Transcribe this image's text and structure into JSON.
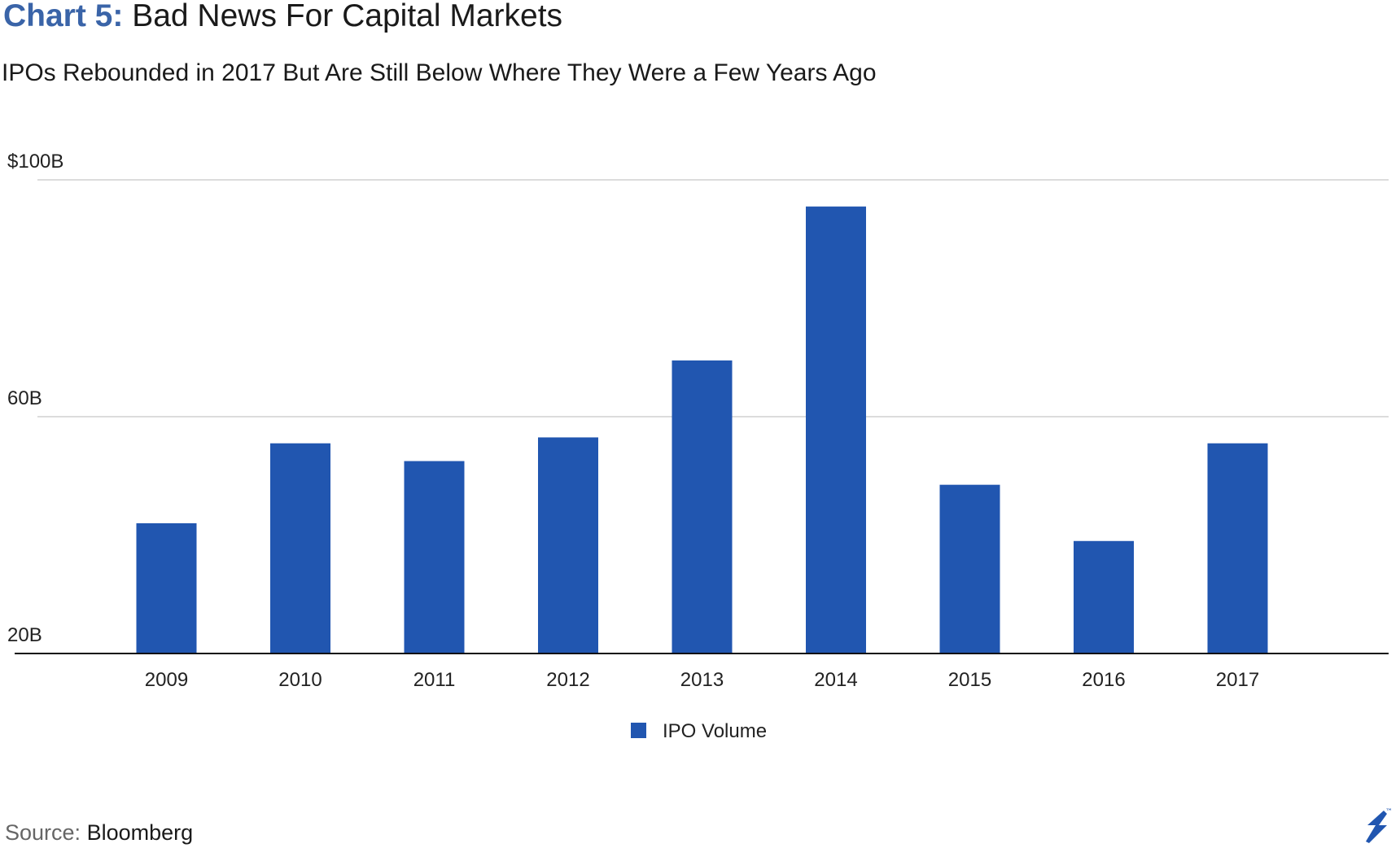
{
  "header": {
    "title_prefix": "Chart 5:",
    "title": "Bad News For Capital Markets",
    "subtitle": "IPOs Rebounded in 2017 But Are Still Below Where They Were a Few Years Ago"
  },
  "footer": {
    "source_label": "Source:",
    "source_value": "Bloomberg"
  },
  "colors": {
    "bar": "#2156b0",
    "title_accent": "#3a64a8",
    "grid": "#d0d0d0",
    "axis": "#111111"
  },
  "chart_data": {
    "type": "bar",
    "title": "Bad News For Capital Markets",
    "subtitle": "IPOs Rebounded in 2017 But Are Still Below Where They Were a Few Years Ago",
    "categories": [
      "2009",
      "2010",
      "2011",
      "2012",
      "2013",
      "2014",
      "2015",
      "2016",
      "2017"
    ],
    "series": [
      {
        "name": "IPO Volume",
        "values": [
          42,
          55.5,
          52.5,
          56.5,
          69.5,
          95.5,
          48.5,
          39,
          55.5
        ]
      }
    ],
    "xlabel": "",
    "ylabel": "",
    "ylim": [
      20,
      100
    ],
    "yticks": [
      {
        "value": 100,
        "label": "$100B"
      },
      {
        "value": 60,
        "label": "60B"
      },
      {
        "value": 20,
        "label": "20B"
      }
    ],
    "grid": true,
    "legend": "bottom-center"
  }
}
